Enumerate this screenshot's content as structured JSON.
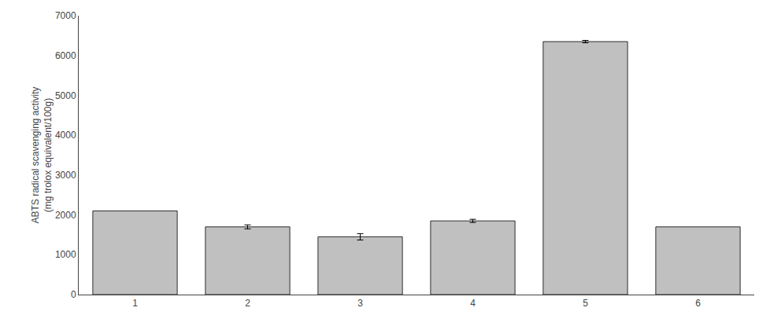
{
  "chart_data": {
    "type": "bar",
    "categories": [
      "1",
      "2",
      "3",
      "4",
      "5",
      "6"
    ],
    "values": [
      2100,
      1700,
      1450,
      1850,
      6350,
      1700
    ],
    "errors": [
      0,
      50,
      80,
      40,
      30,
      0
    ],
    "color": "#c0c0c0",
    "ylabel": "ABTS radical scavenging activity\n(mg trolox equivalent/100g)",
    "ylim": [
      0,
      7000
    ],
    "yticks": [
      0,
      1000,
      2000,
      3000,
      4000,
      5000,
      6000,
      7000
    ],
    "grid": false
  }
}
